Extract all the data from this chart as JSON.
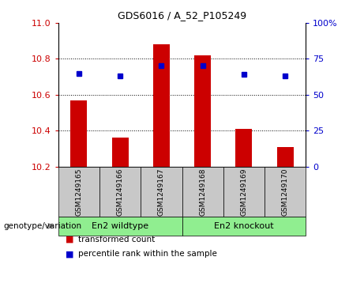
{
  "title": "GDS6016 / A_52_P105249",
  "categories": [
    "GSM1249165",
    "GSM1249166",
    "GSM1249167",
    "GSM1249168",
    "GSM1249169",
    "GSM1249170"
  ],
  "red_values": [
    10.57,
    10.36,
    10.88,
    10.82,
    10.41,
    10.31
  ],
  "blue_values": [
    65,
    63,
    70,
    70,
    64,
    63
  ],
  "ylim_left": [
    10.2,
    11.0
  ],
  "ylim_right": [
    0,
    100
  ],
  "yticks_left": [
    10.2,
    10.4,
    10.6,
    10.8,
    11.0
  ],
  "yticks_right": [
    0,
    25,
    50,
    75,
    100
  ],
  "ytick_labels_right": [
    "0",
    "25",
    "50",
    "75",
    "100%"
  ],
  "groups": [
    {
      "label": "En2 wildtype",
      "start": 0,
      "end": 3
    },
    {
      "label": "En2 knockout",
      "start": 3,
      "end": 6
    }
  ],
  "group_row_label": "genotype/variation",
  "bar_color": "#CC0000",
  "dot_color": "#0000CC",
  "bar_bottom": 10.2,
  "grid_color": "#000000",
  "legend_red_label": "transformed count",
  "legend_blue_label": "percentile rank within the sample",
  "sample_box_color": "#c8c8c8",
  "group_box_color": "#90EE90",
  "ytick_label_color_left": "#CC0000",
  "ytick_label_color_right": "#0000CC"
}
